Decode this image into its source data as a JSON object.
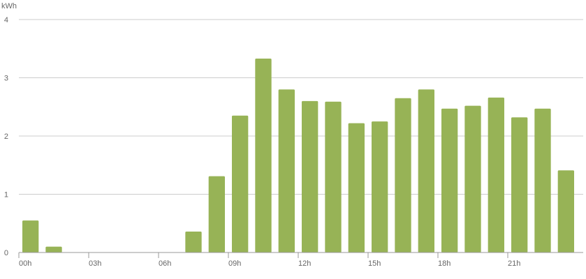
{
  "chart_data": {
    "type": "bar",
    "y_label": "kWh",
    "categories": [
      "00h",
      null,
      null,
      "03h",
      null,
      null,
      "06h",
      null,
      null,
      "09h",
      null,
      null,
      "12h",
      null,
      null,
      "15h",
      null,
      null,
      "18h",
      null,
      null,
      "21h",
      null,
      null
    ],
    "values": [
      0.55,
      0.1,
      0,
      0,
      0,
      0,
      0,
      0.36,
      1.31,
      2.35,
      3.33,
      2.8,
      2.6,
      2.59,
      2.22,
      2.25,
      2.65,
      2.8,
      2.47,
      2.52,
      2.66,
      2.32,
      2.47,
      1.41
    ],
    "color": "#97b356",
    "ylim": [
      0,
      4
    ],
    "yticks": [
      0,
      1,
      2,
      3,
      4
    ],
    "grid": true
  }
}
